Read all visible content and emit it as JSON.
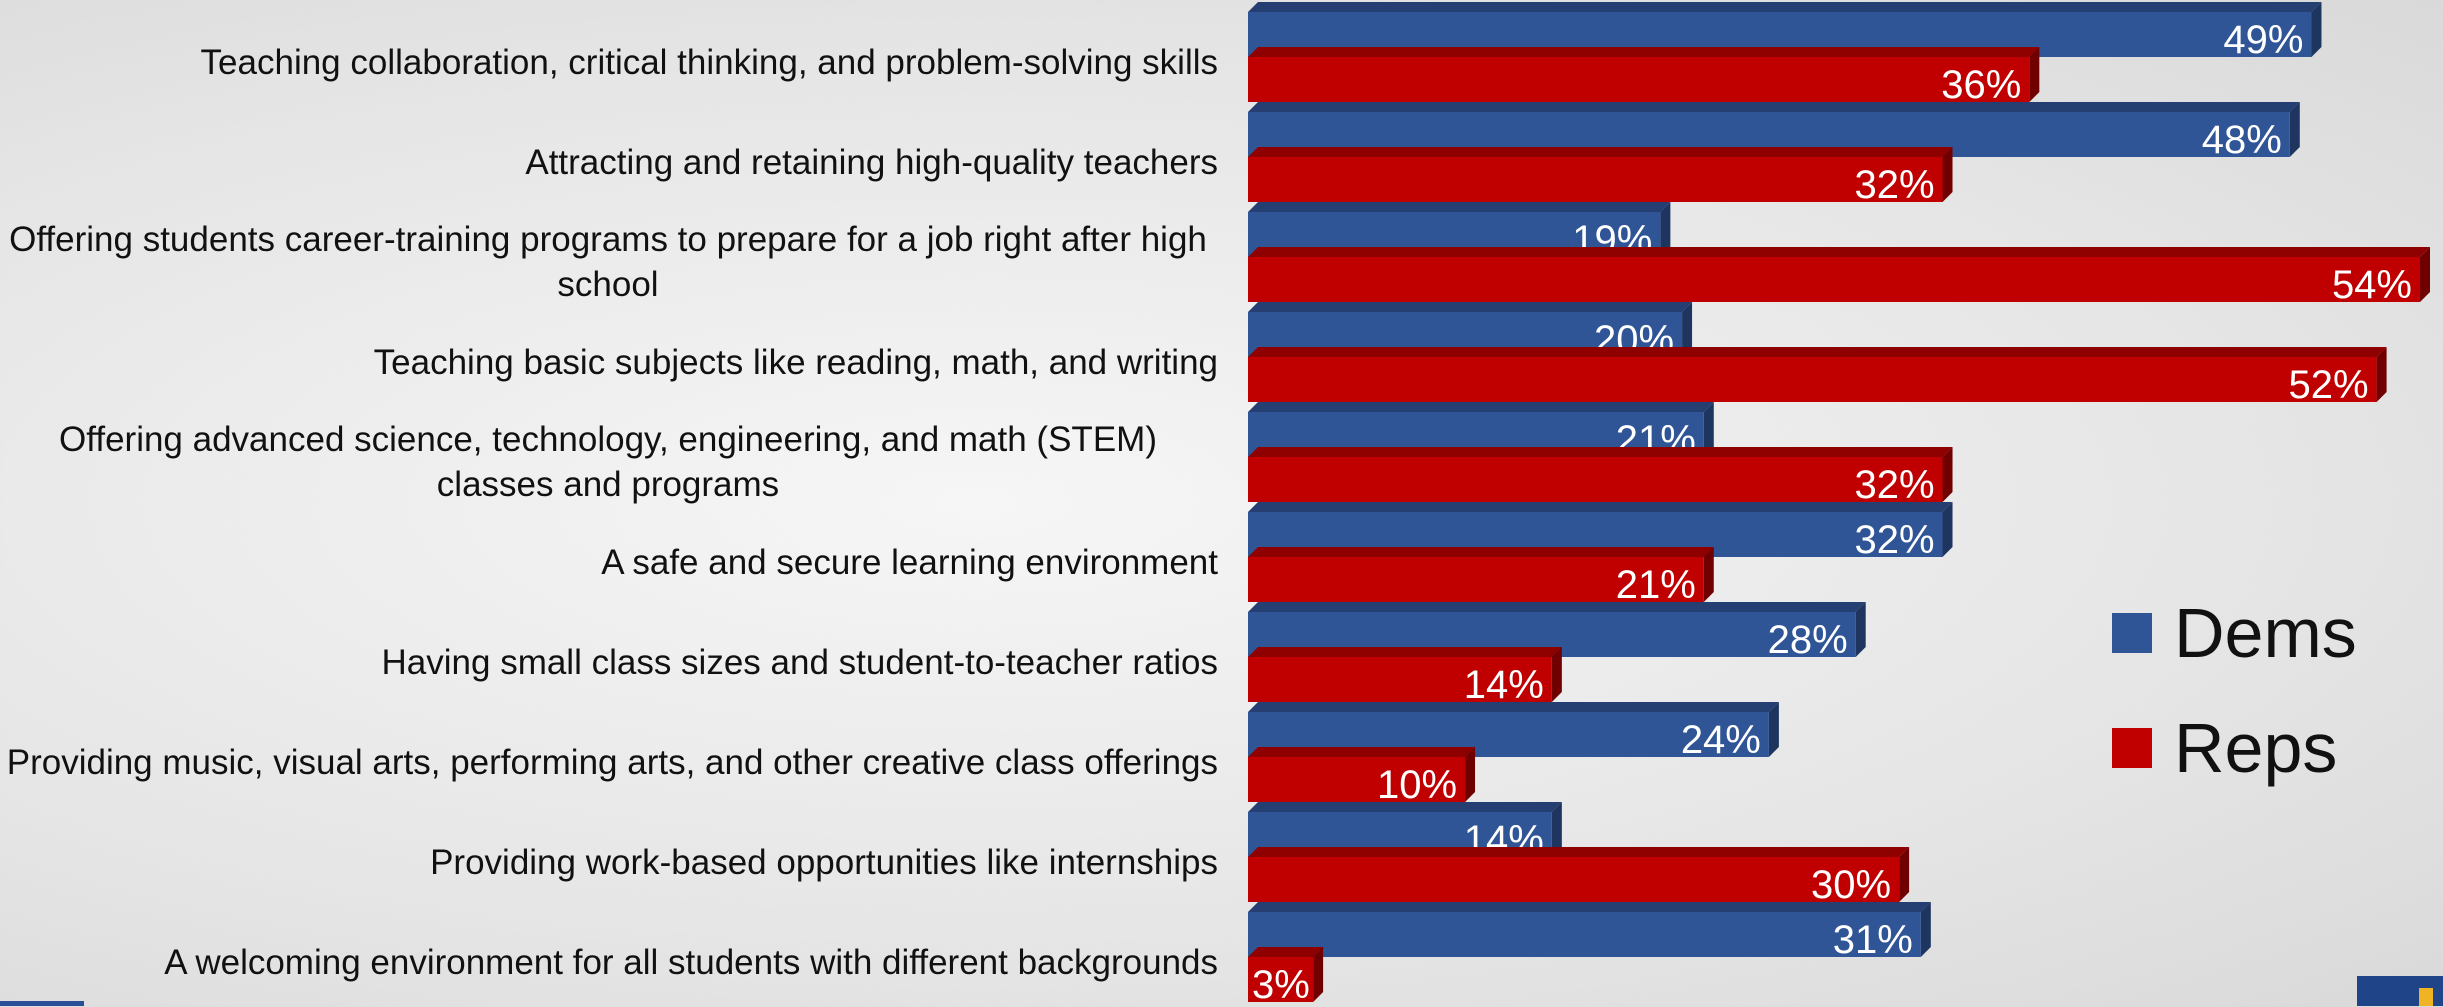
{
  "chart_data": {
    "type": "bar",
    "orientation": "horizontal",
    "categories": [
      "Teaching collaboration, critical thinking, and problem-solving skills",
      "Attracting and retaining high-quality teachers",
      "Offering students career-training programs to prepare for a job right after high school",
      "Teaching basic subjects like reading, math, and writing",
      "Offering advanced science, technology, engineering, and math (STEM) classes and programs",
      "A safe and secure learning environment",
      "Having small class sizes and student-to-teacher ratios",
      "Providing music, visual arts, performing arts, and other creative class offerings",
      "Providing work-based opportunities like internships",
      "A welcoming environment for all students with different backgrounds"
    ],
    "series": [
      {
        "name": "Dems",
        "color": "#2f5597",
        "values": [
          49,
          48,
          19,
          20,
          21,
          32,
          28,
          24,
          14,
          31
        ]
      },
      {
        "name": "Reps",
        "color": "#c00000",
        "values": [
          36,
          32,
          54,
          52,
          32,
          21,
          14,
          10,
          30,
          3
        ]
      }
    ],
    "value_suffix": "%",
    "xlim": [
      0,
      54
    ],
    "grid": false,
    "legend_position": "right"
  }
}
